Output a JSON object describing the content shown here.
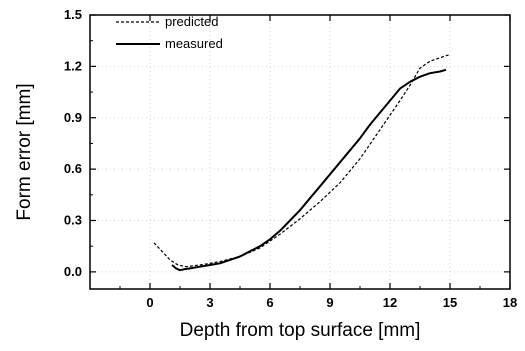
{
  "chart_data": {
    "type": "line",
    "xlabel": "Depth from top surface [mm]",
    "ylabel": "Form error [mm]",
    "xlim": [
      -3,
      18
    ],
    "ylim": [
      -0.1,
      1.5
    ],
    "x_ticks": [
      0,
      3,
      6,
      9,
      12,
      15,
      18
    ],
    "y_ticks": [
      0.0,
      0.3,
      0.6,
      0.9,
      1.2,
      1.5
    ],
    "x_tick_labels": [
      "0",
      "3",
      "6",
      "9",
      "12",
      "15",
      "18"
    ],
    "y_tick_labels": [
      "0.0",
      "0.3",
      "0.6",
      "0.9",
      "1.2",
      "1.5"
    ],
    "grid": true,
    "legend_position": "top-left",
    "series": [
      {
        "name": "predicted",
        "style": "dashed",
        "x": [
          0.2,
          0.6,
          1.0,
          1.4,
          1.8,
          2.5,
          3.5,
          4.5,
          5.5,
          6.5,
          7.5,
          8.5,
          9.5,
          10.5,
          11.5,
          12.5,
          13.0,
          13.5,
          14.0,
          14.5,
          15.0
        ],
        "y": [
          0.17,
          0.12,
          0.07,
          0.04,
          0.03,
          0.04,
          0.06,
          0.09,
          0.14,
          0.22,
          0.31,
          0.41,
          0.52,
          0.66,
          0.83,
          1.0,
          1.09,
          1.19,
          1.23,
          1.25,
          1.27
        ]
      },
      {
        "name": "measured",
        "style": "solid",
        "x": [
          1.1,
          1.3,
          1.5,
          1.7,
          2.0,
          2.5,
          3.0,
          3.5,
          4.0,
          4.5,
          5.0,
          5.5,
          6.0,
          6.5,
          7.0,
          7.5,
          8.0,
          8.5,
          9.0,
          9.5,
          10.0,
          10.5,
          11.0,
          11.5,
          12.0,
          12.5,
          13.0,
          13.5,
          14.0,
          14.5,
          14.8
        ],
        "y": [
          0.04,
          0.02,
          0.01,
          0.015,
          0.02,
          0.03,
          0.04,
          0.05,
          0.07,
          0.09,
          0.12,
          0.15,
          0.19,
          0.24,
          0.3,
          0.36,
          0.43,
          0.5,
          0.57,
          0.64,
          0.71,
          0.78,
          0.86,
          0.93,
          1.0,
          1.07,
          1.11,
          1.14,
          1.16,
          1.17,
          1.18
        ]
      }
    ]
  }
}
